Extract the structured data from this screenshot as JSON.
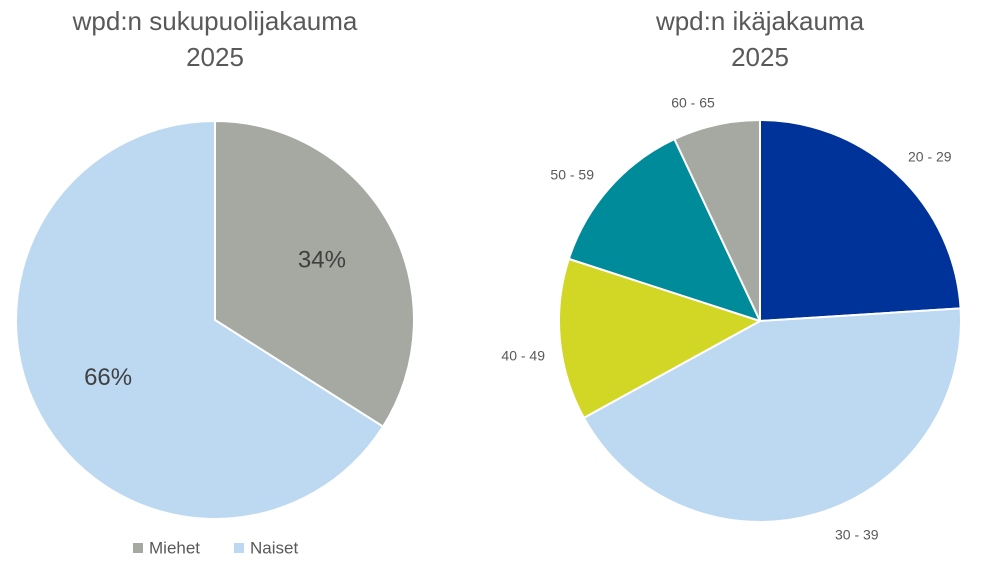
{
  "chart_data": [
    {
      "type": "pie",
      "title": "wpd:n sukupuolijakauma",
      "subtitle": "2025",
      "labels": [
        "Miehet",
        "Naiset"
      ],
      "values": [
        34,
        66
      ],
      "value_labels": [
        "34%",
        "66%"
      ],
      "colors": [
        "#a5a9a2",
        "#bdd9f2"
      ],
      "legend": "bottom",
      "data_labels": "inside"
    },
    {
      "type": "pie",
      "title": "wpd:n ikäjakauma",
      "subtitle": "2025",
      "labels": [
        "20 - 29",
        "30 - 39",
        "40 - 49",
        "50 - 59",
        "60 - 65"
      ],
      "values": [
        24,
        43,
        13,
        13,
        7
      ],
      "colors": [
        "#003399",
        "#bdd9f2",
        "#d1d724",
        "#008b9a",
        "#a5a9a2"
      ],
      "legend": "none",
      "data_labels": "outside"
    }
  ]
}
